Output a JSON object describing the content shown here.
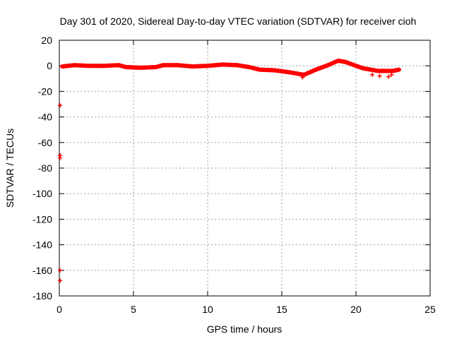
{
  "chart_data": {
    "type": "scatter",
    "title": "Day 301 of 2020, Sidereal Day-to-day VTEC variation (SDTVAR) for receiver cioh",
    "xlabel": "GPS time / hours",
    "ylabel": "SDTVAR / TECUs",
    "xlim": [
      0,
      25
    ],
    "ylim": [
      -180,
      20
    ],
    "xticks": [
      "0",
      "5",
      "10",
      "15",
      "20",
      "25"
    ],
    "yticks": [
      "20",
      "0",
      "-20",
      "-40",
      "-60",
      "-80",
      "-100",
      "-120",
      "-140",
      "-160",
      "-180"
    ],
    "grid": true,
    "legend": "none",
    "series": [
      {
        "name": "SDTVAR",
        "color": "#ff0000",
        "marker": "plus",
        "band_width": 4,
        "trace": [
          [
            0.2,
            -0.5
          ],
          [
            1.0,
            0.5
          ],
          [
            2.0,
            0
          ],
          [
            3.0,
            0
          ],
          [
            4.0,
            0.5
          ],
          [
            4.5,
            -1
          ],
          [
            5.5,
            -1.5
          ],
          [
            6.5,
            -1
          ],
          [
            7.0,
            0.5
          ],
          [
            8.0,
            0.5
          ],
          [
            9.0,
            -0.5
          ],
          [
            10.0,
            0
          ],
          [
            11.0,
            1
          ],
          [
            12.0,
            0.5
          ],
          [
            12.8,
            -1
          ],
          [
            13.5,
            -3
          ],
          [
            14.5,
            -3.5
          ],
          [
            15.5,
            -5
          ],
          [
            16.5,
            -7
          ],
          [
            17.3,
            -3
          ],
          [
            18.0,
            0
          ],
          [
            18.8,
            4
          ],
          [
            19.3,
            3
          ],
          [
            20.0,
            0
          ],
          [
            20.5,
            -2
          ],
          [
            21.0,
            -3
          ],
          [
            21.5,
            -4
          ],
          [
            22.0,
            -4
          ],
          [
            22.5,
            -4
          ],
          [
            22.9,
            -3
          ]
        ],
        "outliers": [
          [
            21.1,
            -7
          ],
          [
            21.6,
            -8
          ],
          [
            22.2,
            -8.5
          ],
          [
            22.4,
            -7
          ],
          [
            16.4,
            -9
          ],
          [
            0.05,
            -31
          ],
          [
            0.05,
            -70
          ],
          [
            0.05,
            -72
          ],
          [
            0.05,
            -160
          ],
          [
            0.05,
            -168
          ]
        ]
      }
    ]
  }
}
